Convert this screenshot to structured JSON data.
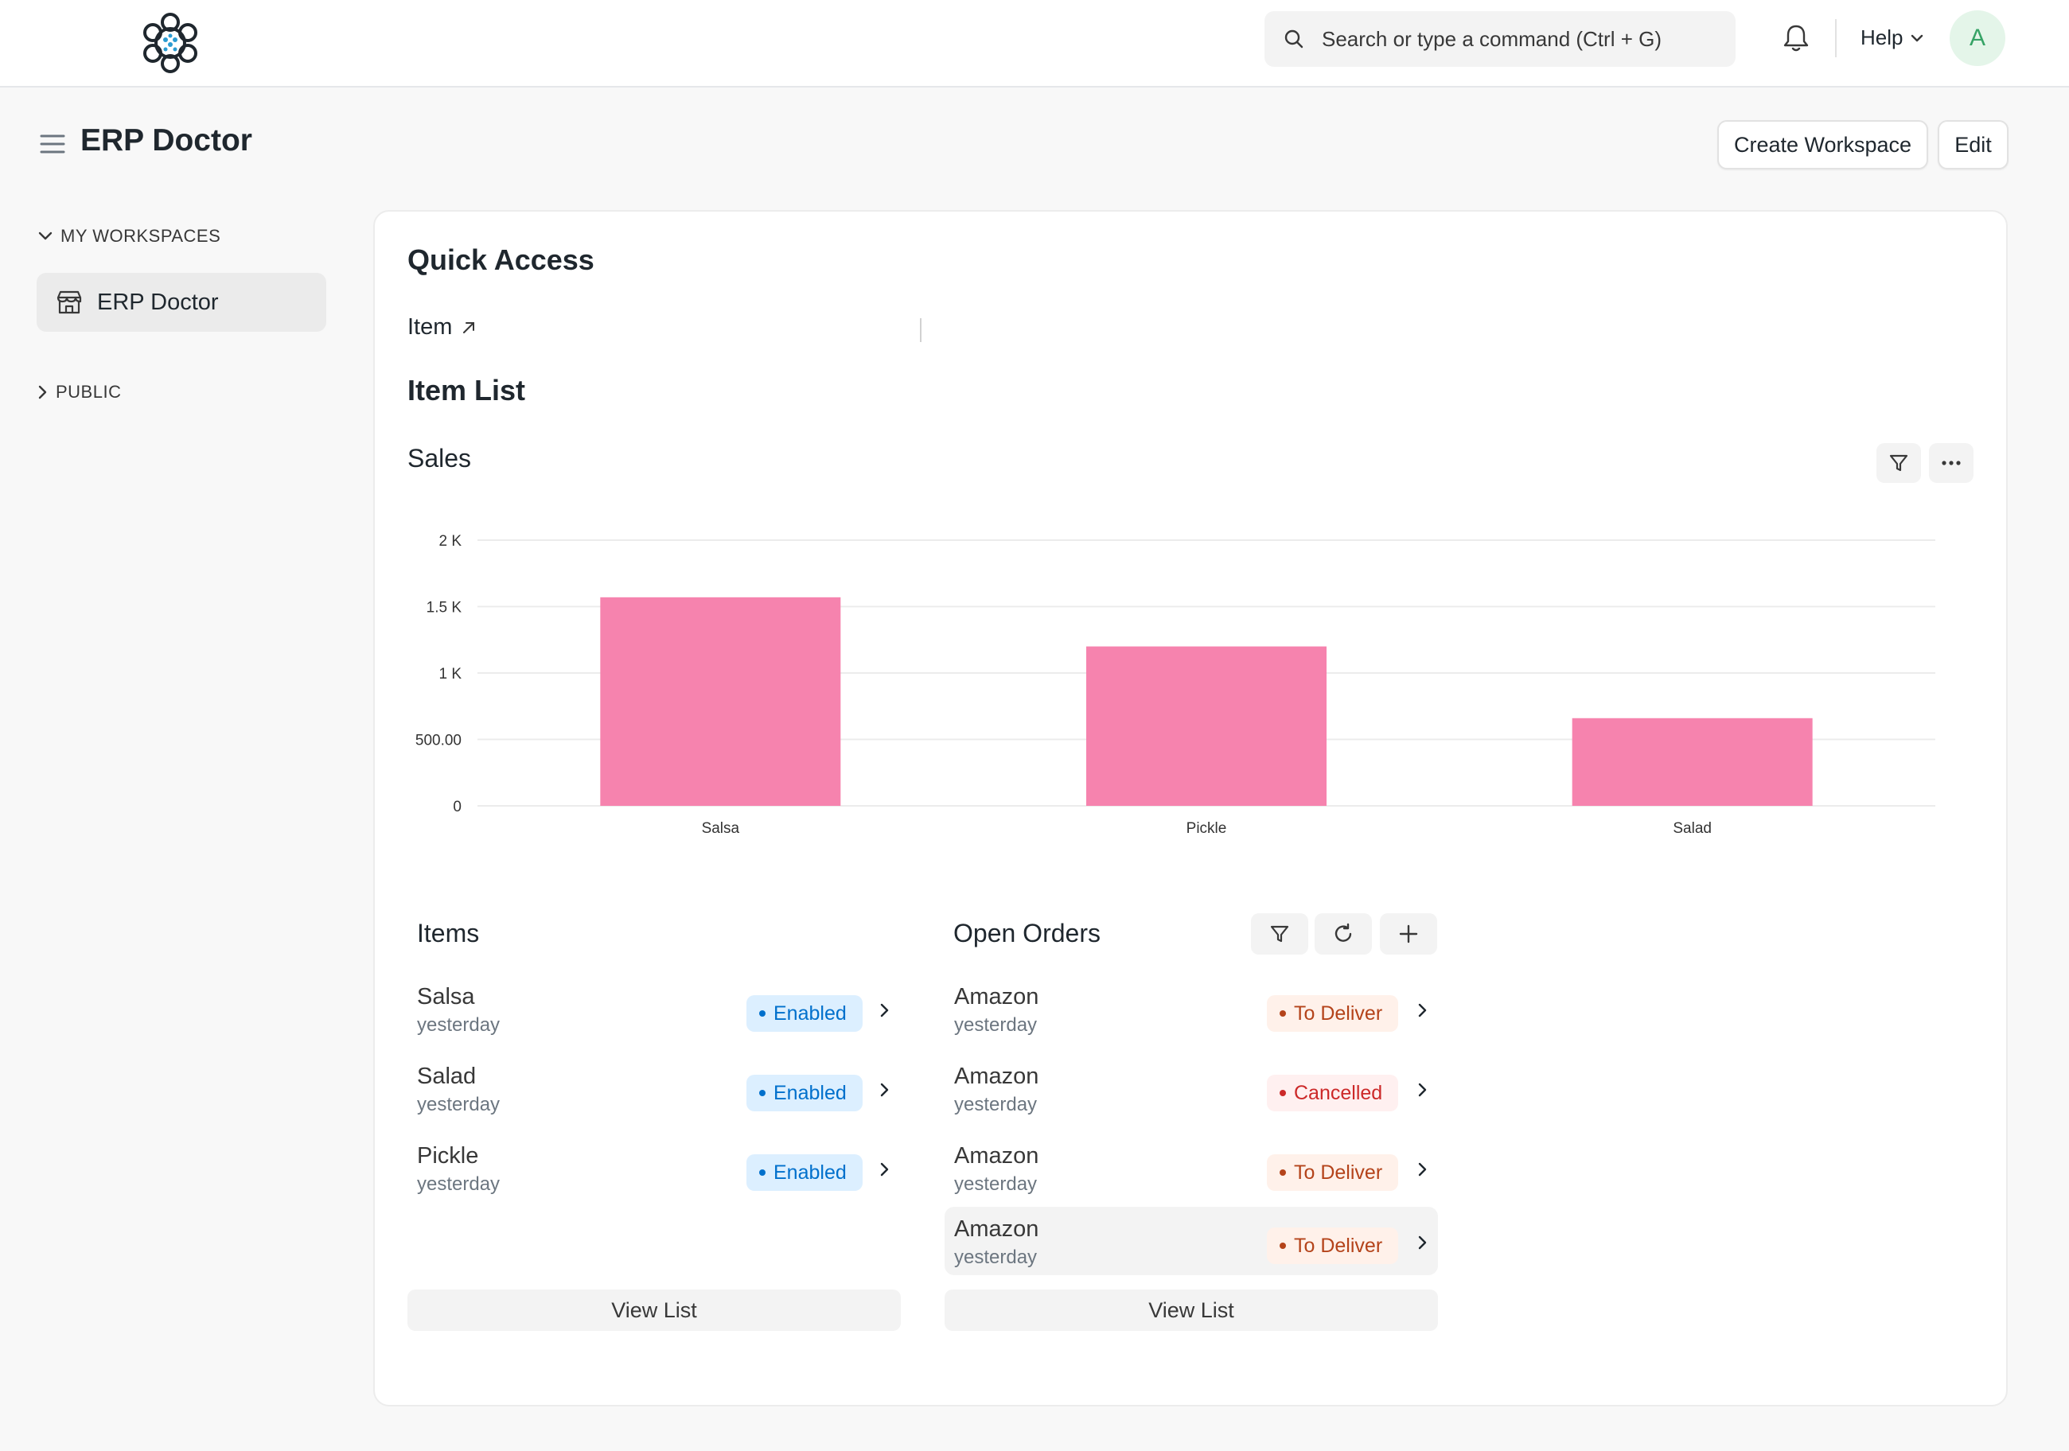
{
  "navbar": {
    "search_placeholder": "Search or type a command (Ctrl + G)",
    "help_label": "Help",
    "avatar_initial": "A"
  },
  "page": {
    "title": "ERP Doctor",
    "create_workspace_label": "Create Workspace",
    "edit_label": "Edit"
  },
  "sidebar": {
    "my_workspaces_label": "MY WORKSPACES",
    "items": [
      {
        "label": "ERP Doctor",
        "icon": "store-icon"
      }
    ],
    "public_label": "PUBLIC"
  },
  "main": {
    "quick_access_title": "Quick Access",
    "quick_access_items": [
      {
        "label": "Item"
      }
    ],
    "item_list_title": "Item List",
    "sales_title": "Sales"
  },
  "chart_data": {
    "type": "bar",
    "title": "Sales",
    "categories": [
      "Salsa",
      "Pickle",
      "Salad"
    ],
    "values": [
      1570,
      1200,
      660
    ],
    "ylim": [
      0,
      2000
    ],
    "yticks": [
      {
        "value": 0,
        "label": "0"
      },
      {
        "value": 500,
        "label": "500.00"
      },
      {
        "value": 1000,
        "label": "1 K"
      },
      {
        "value": 1500,
        "label": "1.5 K"
      },
      {
        "value": 2000,
        "label": "2 K"
      }
    ],
    "grid": true,
    "color": "#f683ae"
  },
  "items_list": {
    "title": "Items",
    "rows": [
      {
        "name": "Salsa",
        "sub": "yesterday",
        "status": "Enabled"
      },
      {
        "name": "Salad",
        "sub": "yesterday",
        "status": "Enabled"
      },
      {
        "name": "Pickle",
        "sub": "yesterday",
        "status": "Enabled"
      }
    ],
    "view_list_label": "View List"
  },
  "orders_list": {
    "title": "Open Orders",
    "rows": [
      {
        "name": "Amazon",
        "sub": "yesterday",
        "status": "To Deliver"
      },
      {
        "name": "Amazon",
        "sub": "yesterday",
        "status": "Cancelled"
      },
      {
        "name": "Amazon",
        "sub": "yesterday",
        "status": "To Deliver"
      },
      {
        "name": "Amazon",
        "sub": "yesterday",
        "status": "To Deliver"
      }
    ],
    "view_list_label": "View List"
  }
}
